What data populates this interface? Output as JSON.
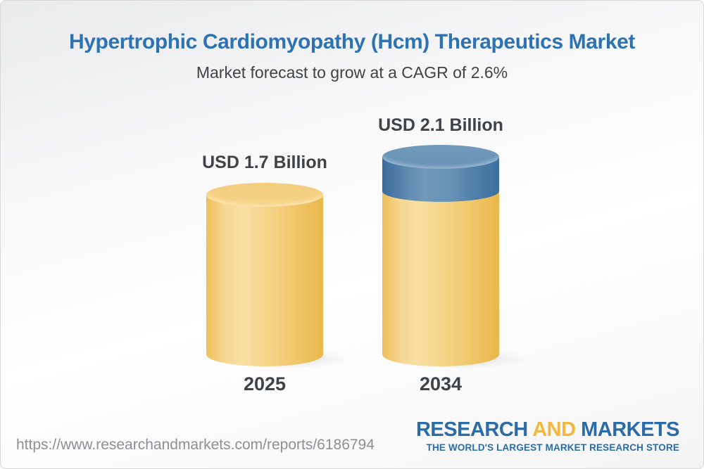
{
  "header": {
    "title": "Hypertrophic Cardiomyopathy (Hcm) Therapeutics Market",
    "subtitle": "Market forecast to grow at a CAGR of 2.6%"
  },
  "chart_data": {
    "type": "bar",
    "title": "Hypertrophic Cardiomyopathy (Hcm) Therapeutics Market",
    "subtitle": "Market forecast to grow at a CAGR of 2.6%",
    "categories": [
      "2025",
      "2034"
    ],
    "values": [
      1.7,
      2.1
    ],
    "unit": "USD Billion",
    "cagr_percent": 2.6,
    "annotations": [
      "USD 1.7 Billion",
      "USD 2.1 Billion"
    ],
    "legend_position": "none",
    "grid": false,
    "axis_labels": "none",
    "colors": {
      "bar_base": "#f2c765",
      "bar_growth_segment": "#557fa8",
      "label_text": "#3e4347",
      "title_text": "#2d73b4"
    }
  },
  "bars": [
    {
      "year": "2025",
      "value_label": "USD 1.7 Billion"
    },
    {
      "year": "2034",
      "value_label": "USD 2.1 Billion"
    }
  ],
  "footer": {
    "url": "https://www.researchandmarkets.com/reports/6186794",
    "logo": {
      "word1": "RESEARCH",
      "word2": "AND",
      "word3": "MARKETS",
      "tagline": "THE WORLD'S LARGEST MARKET RESEARCH STORE"
    }
  }
}
